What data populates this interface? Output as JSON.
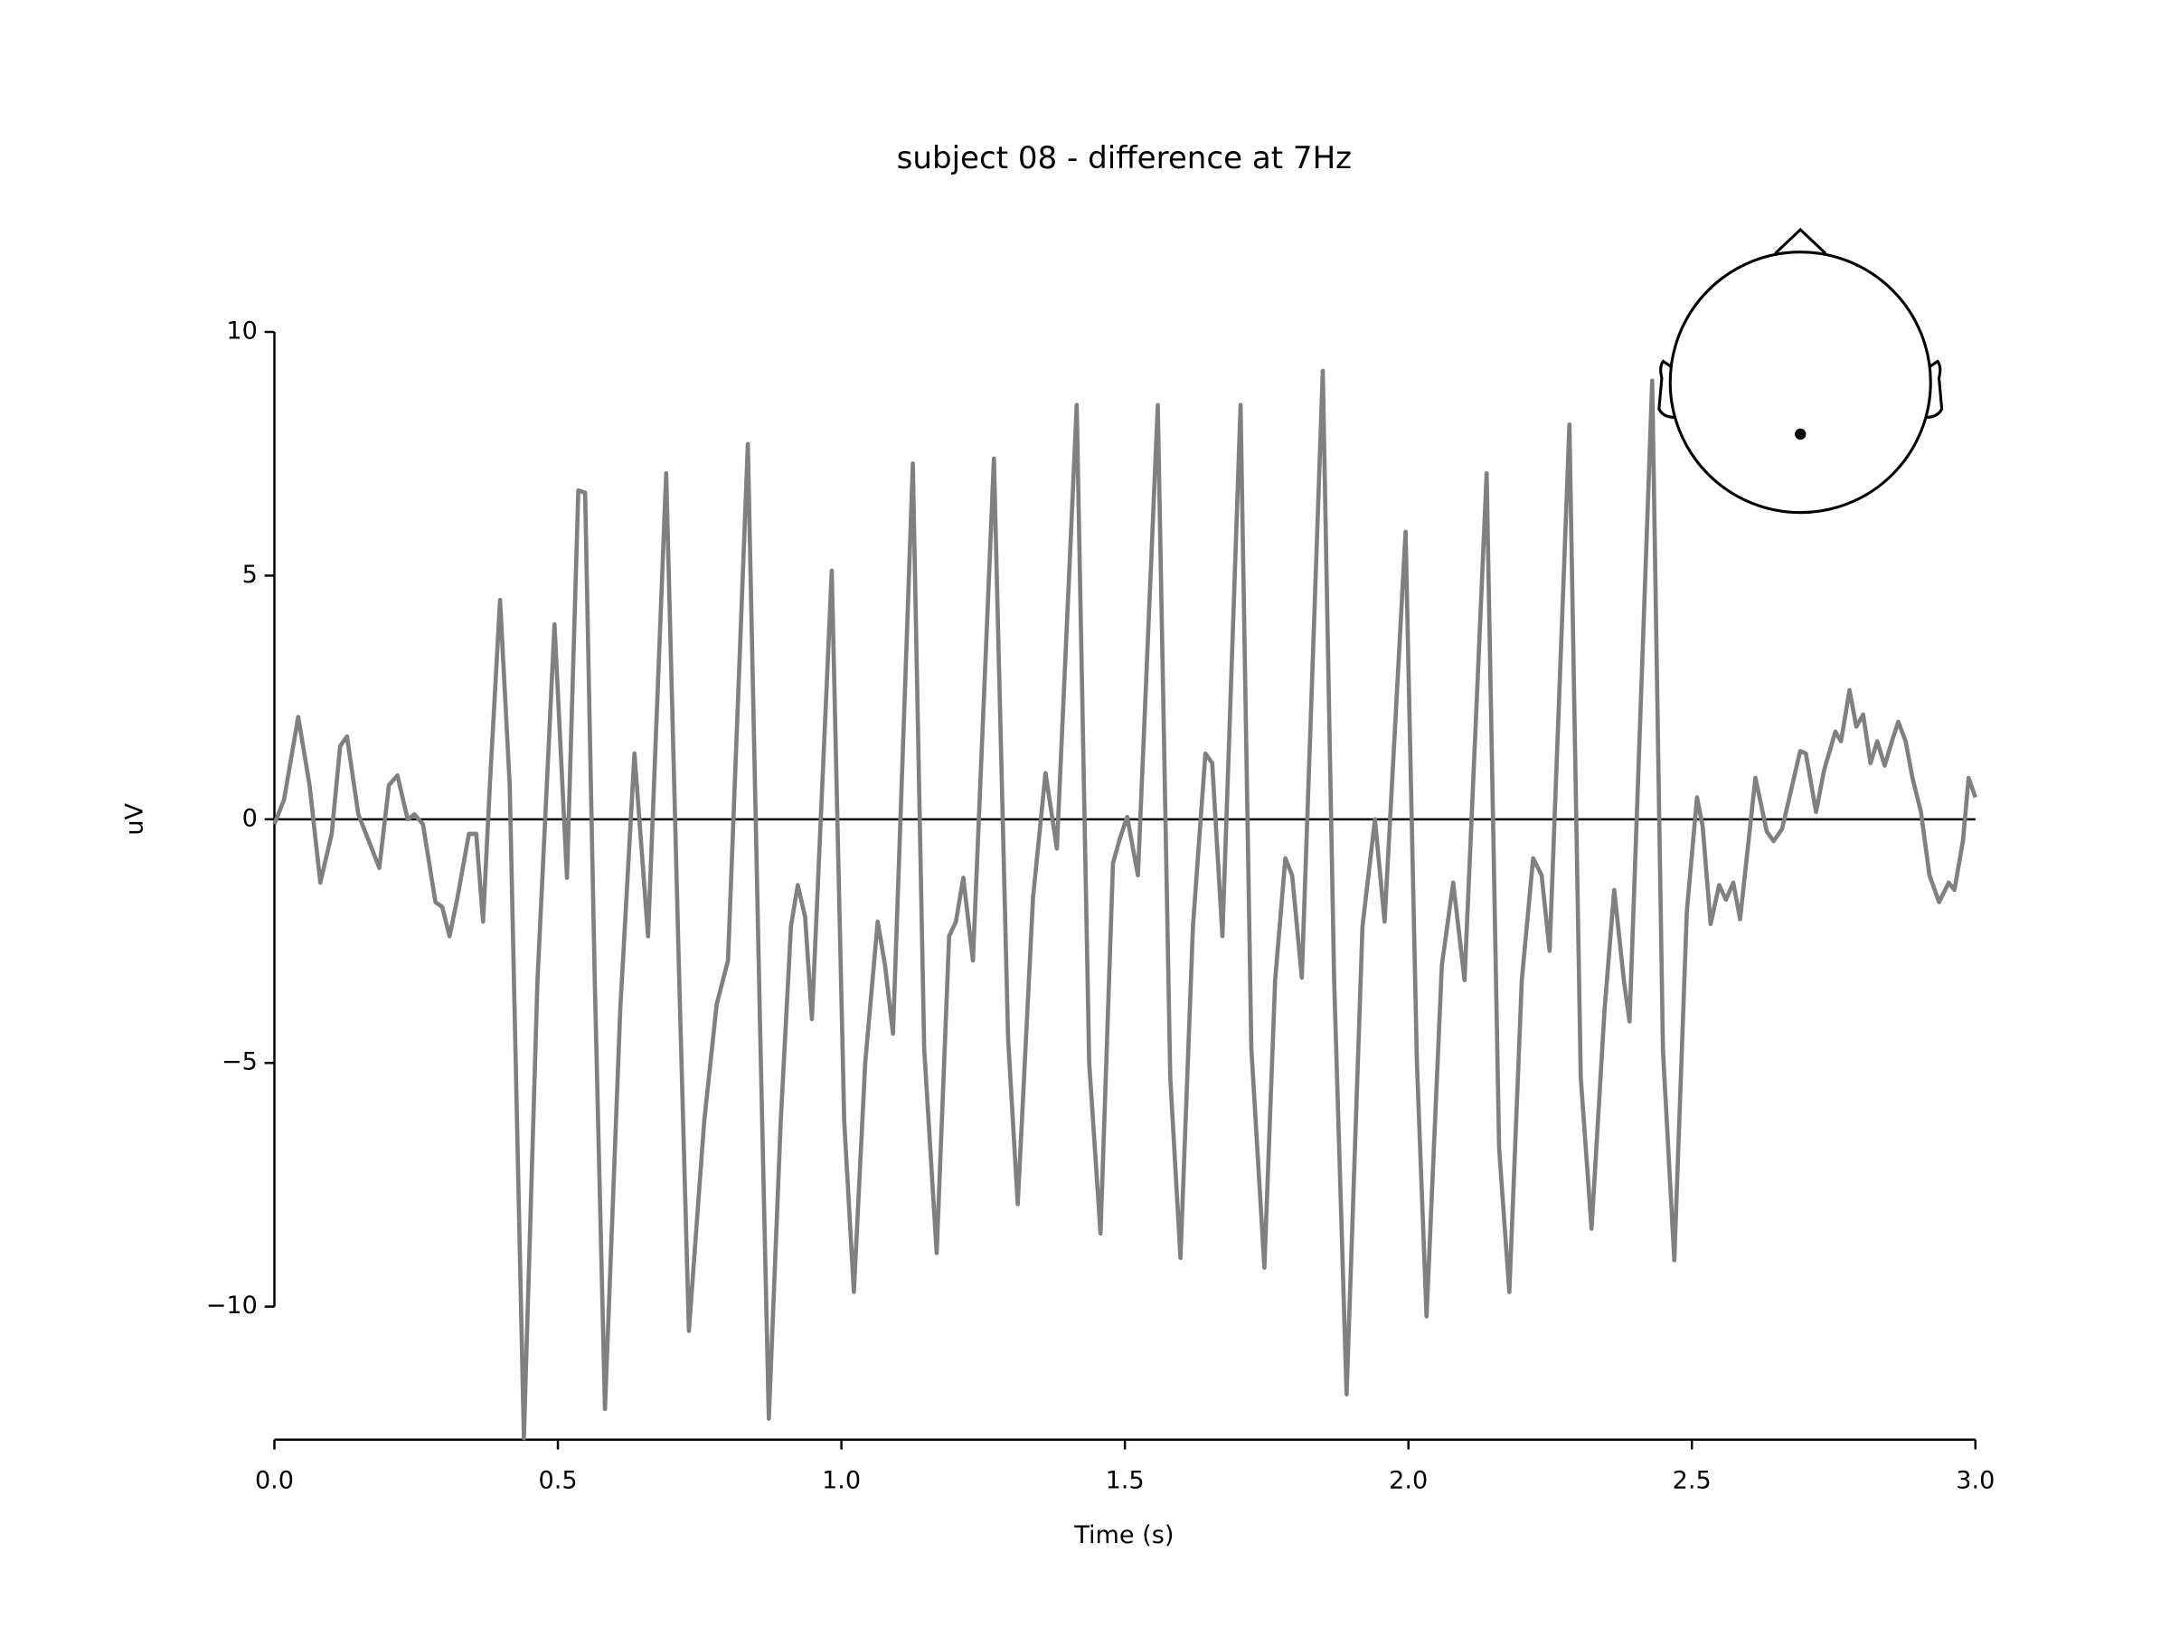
{
  "chart_data": {
    "type": "line",
    "title": "subject 08 - difference at 7Hz",
    "xlabel": "Time (s)",
    "ylabel": "uV",
    "xlim": [
      0,
      3
    ],
    "ylim": [
      -12.73,
      12.8
    ],
    "xticks": [
      {
        "value": 0,
        "label": "0.0"
      },
      0.5,
      {
        "value": 1,
        "label": "1.0"
      },
      1.5,
      {
        "value": 2,
        "label": "2.0"
      },
      2.5,
      {
        "value": 3,
        "label": "3.0"
      }
    ],
    "yticks": [
      {
        "value": -10,
        "label": "−10"
      },
      {
        "value": -5,
        "label": "−5"
      },
      0,
      5,
      10
    ],
    "hline": 0,
    "grid": false,
    "series": [
      {
        "color": "#808080",
        "x": [
          0,
          0.017,
          0.042,
          0.062,
          0.081,
          0.101,
          0.116,
          0.128,
          0.148,
          0.165,
          0.185,
          0.202,
          0.217,
          0.235,
          0.247,
          0.262,
          0.284,
          0.296,
          0.309,
          0.323,
          0.343,
          0.356,
          0.368,
          0.38,
          0.398,
          0.415,
          0.44,
          0.464,
          0.494,
          0.516,
          0.536,
          0.548,
          0.565,
          0.583,
          0.61,
          0.635,
          0.659,
          0.691,
          0.714,
          0.731,
          0.758,
          0.78,
          0.8,
          0.835,
          0.857,
          0.872,
          0.893,
          0.911,
          0.923,
          0.936,
          0.948,
          0.983,
          1.005,
          1.022,
          1.042,
          1.064,
          1.077,
          1.091,
          1.126,
          1.146,
          1.168,
          1.19,
          1.202,
          1.215,
          1.232,
          1.269,
          1.294,
          1.311,
          1.338,
          1.36,
          1.38,
          1.415,
          1.437,
          1.457,
          1.479,
          1.491,
          1.504,
          1.523,
          1.558,
          1.58,
          1.598,
          1.62,
          1.642,
          1.654,
          1.672,
          1.704,
          1.723,
          1.746,
          1.765,
          1.783,
          1.795,
          1.812,
          1.849,
          1.869,
          1.891,
          1.919,
          1.941,
          1.958,
          1.995,
          2.015,
          2.032,
          2.059,
          2.079,
          2.099,
          2.138,
          2.16,
          2.178,
          2.2,
          2.22,
          2.235,
          2.249,
          2.284,
          2.304,
          2.323,
          2.346,
          2.363,
          2.38,
          2.39,
          2.43,
          2.449,
          2.469,
          2.491,
          2.509,
          2.519,
          2.533,
          2.548,
          2.56,
          2.573,
          2.585,
          2.612,
          2.632,
          2.644,
          2.659,
          2.691,
          2.701,
          2.719,
          2.733,
          2.753,
          2.763,
          2.778,
          2.79,
          2.802,
          2.815,
          2.827,
          2.84,
          2.854,
          2.864,
          2.877,
          2.889,
          2.904,
          2.919,
          2.936,
          2.953,
          2.963,
          2.978,
          2.988,
          3
        ],
        "values": [
          -0.1,
          0.4,
          2.1,
          0.7,
          -1.3,
          -0.3,
          1.5,
          1.7,
          0.1,
          -0.4,
          -1,
          0.7,
          0.9,
          0,
          0.1,
          -0.1,
          -1.7,
          -1.8,
          -2.4,
          -1.6,
          -0.3,
          -0.3,
          -2.1,
          0.7,
          4.5,
          0.7,
          -12.7,
          -3.3,
          4,
          -1.2,
          6.75,
          6.7,
          -3.3,
          -12.1,
          -3.9,
          1.35,
          -2.4,
          7.1,
          -3.3,
          -10.5,
          -6.2,
          -3.8,
          -2.9,
          7.7,
          -4.5,
          -12.3,
          -6.2,
          -2.2,
          -1.35,
          -2,
          -4.1,
          5.1,
          -6.2,
          -9.7,
          -5,
          -2.1,
          -3,
          -4.4,
          7.3,
          -4.7,
          -8.9,
          -2.4,
          -2.1,
          -1.2,
          -2.9,
          7.4,
          -4.5,
          -7.9,
          -1.6,
          0.95,
          -0.6,
          8.5,
          -5,
          -8.5,
          -0.9,
          -0.4,
          0.05,
          -1.15,
          8.5,
          -5.3,
          -9,
          -2.2,
          1.35,
          1.15,
          -2.4,
          8.5,
          -4.7,
          -9.2,
          -3.3,
          -0.8,
          -1.15,
          -3.25,
          9.2,
          -3.3,
          -11.8,
          -2.2,
          0,
          -2.1,
          5.9,
          -5,
          -10.2,
          -3,
          -1.3,
          -3.3,
          7.1,
          -6.75,
          -9.7,
          -3.3,
          -0.8,
          -1.15,
          -2.7,
          8.1,
          -5.3,
          -8.4,
          -3.9,
          -1.45,
          -3.3,
          -4.15,
          9,
          -4.75,
          -9.05,
          -1.9,
          0.45,
          -0.15,
          -2.15,
          -1.35,
          -1.65,
          -1.3,
          -2.05,
          0.85,
          -0.25,
          -0.45,
          -0.2,
          1.4,
          1.35,
          0.15,
          1,
          1.8,
          1.6,
          2.65,
          1.9,
          2.15,
          1.15,
          1.6,
          1.1,
          1.65,
          2,
          1.6,
          0.85,
          0.15,
          -1.15,
          -1.7,
          -1.3,
          -1.45,
          -0.45,
          0.85,
          0.45
        ]
      }
    ]
  }
}
